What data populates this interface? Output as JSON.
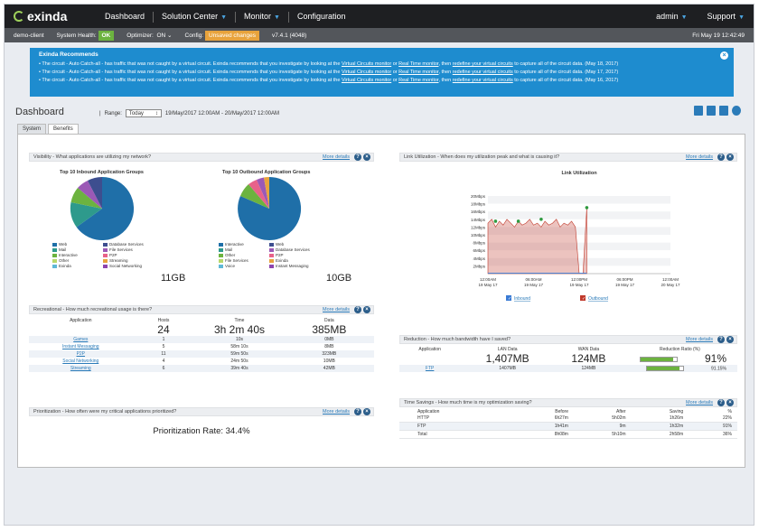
{
  "brand": "exinda",
  "nav": {
    "items": [
      {
        "label": "Dashboard",
        "dropdown": false
      },
      {
        "label": "Solution Center",
        "dropdown": true
      },
      {
        "label": "Monitor",
        "dropdown": true
      },
      {
        "label": "Configuration",
        "dropdown": false
      }
    ],
    "user": "admin",
    "support": "Support"
  },
  "status": {
    "client": "demo-client",
    "health_label": "System Health:",
    "health_value": "OK",
    "optimizer_label": "Optimizer:",
    "optimizer_value": "ON",
    "config_label": "Config:",
    "config_value": "Unsaved changes",
    "version": "v7.4.1 (4048)",
    "datetime": "Fri May 19 12:42:49"
  },
  "alert": {
    "title": "Exinda Recommends",
    "lines": [
      {
        "pre": "The circuit - Auto Catch-all - has traffic that was not caught by a virtual circuit. Exinda recommends that you investigate by looking at the ",
        "l1": "Virtual Circuits monitor",
        "mid1": " or ",
        "l2": "Real Time monitor",
        "mid2": ", then ",
        "l3": "redefine your virtual circuits",
        "post": " to capture all of the circuit data. (May 18, 2017)"
      },
      {
        "pre": "The circuit - Auto Catch-all - has traffic that was not caught by a virtual circuit. Exinda recommends that you investigate by looking at the ",
        "l1": "Virtual Circuits monitor",
        "mid1": " or ",
        "l2": "Real Time monitor",
        "mid2": ", then ",
        "l3": "redefine your virtual circuits",
        "post": " to capture all of the circuit data. (May 17, 2017)"
      },
      {
        "pre": "The circuit - Auto Catch-all - has traffic that was not caught by a virtual circuit. Exinda recommends that you investigate by looking at the ",
        "l1": "Virtual Circuits monitor",
        "mid1": " or ",
        "l2": "Real Time monitor",
        "mid2": ", then ",
        "l3": "redefine your virtual circuits",
        "post": " to capture all of the circuit data. (May 16, 2017)"
      }
    ]
  },
  "dashboard": {
    "title": "Dashboard",
    "range_label": "Range:",
    "range_value": "Today",
    "range_text": "19/May/2017 12:00AM - 20/May/2017 12:00AM",
    "tabs": [
      "System",
      "Benefits"
    ]
  },
  "common": {
    "more_details": "More details"
  },
  "visibility": {
    "header": "Visibility - What applications are utilizing my network?",
    "inbound_title": "Top 10 Inbound Application Groups",
    "outbound_title": "Top 10 Outbound Application Groups",
    "inbound_total": "11GB",
    "outbound_total": "10GB",
    "inbound_legend": [
      "Web",
      "Database Services",
      "Mail",
      "File Services",
      "Interactive",
      "P2P",
      "Other",
      "Streaming",
      "Exinda",
      "Social Networking"
    ],
    "outbound_legend": [
      "Interactive",
      "Web",
      "Mail",
      "Database Services",
      "Other",
      "P2P",
      "File Services",
      "Exinda",
      "Voice",
      "Instant Messaging"
    ],
    "legend_colors": [
      "#1f6fa8",
      "#3d4e8f",
      "#2e9a8c",
      "#9b59b6",
      "#6cb33f",
      "#e8628a",
      "#b8d86a",
      "#e8a33c",
      "#5fb8d6",
      "#8e44ad"
    ]
  },
  "recreational": {
    "header": "Recreational - How much recreational usage is there?",
    "columns": [
      "Application",
      "Hosts",
      "Time",
      "Data"
    ],
    "totals": [
      "",
      "24",
      "3h 2m 40s",
      "385MB"
    ],
    "rows": [
      [
        "Games",
        "1",
        "10s",
        "0MB"
      ],
      [
        "Instant Messaging",
        "5",
        "58m 10s",
        "8MB"
      ],
      [
        "P2P",
        "11",
        "59m 50s",
        "323MB"
      ],
      [
        "Social Networking",
        "4",
        "24m 50s",
        "10MB"
      ],
      [
        "Streaming",
        "6",
        "39m 40s",
        "42MB"
      ]
    ]
  },
  "prioritization": {
    "header": "Prioritization - How often were my critical applications prioritized?",
    "text": "Prioritization Rate: 34.4%"
  },
  "link": {
    "header": "Link Utilization - When does my utilization peak and what is causing it?",
    "chart_title": "Link Utilization",
    "legend": [
      "Inbound",
      "Outbound"
    ]
  },
  "reduction": {
    "header": "Reduction - How much bandwidth have I saved?",
    "columns": [
      "Application",
      "LAN Data",
      "WAN Data",
      "Reduction Ratio (%)"
    ],
    "totals": [
      "",
      "1,407MB",
      "124MB",
      "91%"
    ],
    "rows": [
      [
        "FTP",
        "1407MB",
        "124MB",
        "91.15%"
      ]
    ],
    "ratio": 91.15
  },
  "timesavings": {
    "header": "Time Savings - How much time is my optimization saving?",
    "columns": [
      "Application",
      "Before",
      "After",
      "Saving",
      "%"
    ],
    "rows": [
      [
        "HTTP",
        "6h27m",
        "5h02m",
        "1h26m",
        "22%"
      ],
      [
        "FTP",
        "1h41m",
        "9m",
        "1h32m",
        "91%"
      ],
      [
        "Total",
        "8h08m",
        "5h10m",
        "2h58m",
        "36%"
      ]
    ]
  },
  "chart_data": {
    "type": "area",
    "title": "Link Utilization",
    "xlabel": "",
    "ylabel": "",
    "y_ticks": [
      "20Mbps",
      "18Mbps",
      "16Mbps",
      "14Mbps",
      "12Mbps",
      "10Mbps",
      "8Mbps",
      "6Mbps",
      "4Mbps",
      "2Mbps"
    ],
    "x_ticks": [
      "12:00AM 19 May 17",
      "06:00AM 19 May 17",
      "12:00PM 19 May 17",
      "06:00PM 19 May 17",
      "12:00AM 20 May 17"
    ],
    "ylim": [
      0,
      20
    ],
    "series": [
      {
        "name": "Inbound",
        "color": "#3a7bd5",
        "x": [
          0,
          0.5,
          1,
          1.5,
          2,
          2.5,
          3,
          3.5,
          4,
          4.5,
          5,
          5.5,
          6,
          6.5,
          7,
          7.5,
          8,
          8.5,
          9,
          9.5,
          10,
          10.5,
          11,
          11.5,
          12,
          12.5,
          13
        ],
        "values": [
          0.1,
          0.1,
          0.1,
          0.1,
          0.1,
          0.1,
          0.1,
          0.1,
          0.1,
          0.1,
          0.1,
          0.1,
          0.1,
          0.1,
          0.1,
          0.1,
          0.1,
          0.1,
          0.1,
          0.1,
          0.1,
          0.1,
          0.1,
          0.1,
          0.1,
          0.1,
          0.1
        ]
      },
      {
        "name": "Outbound",
        "color": "#c0392b",
        "x": [
          0,
          0.5,
          1,
          1.5,
          2,
          2.5,
          3,
          3.5,
          4,
          4.5,
          5,
          5.5,
          6,
          6.5,
          7,
          7.5,
          8,
          8.5,
          9,
          9.5,
          10,
          10.5,
          11,
          11.5,
          12,
          12.5,
          13
        ],
        "values": [
          13,
          14,
          12,
          13.5,
          12.5,
          14,
          13,
          12,
          13.5,
          12.5,
          13,
          14,
          12.5,
          13,
          12,
          13.5,
          12.5,
          13,
          14,
          12,
          13,
          12.5,
          13.5,
          12,
          0,
          0,
          17
        ]
      }
    ]
  }
}
